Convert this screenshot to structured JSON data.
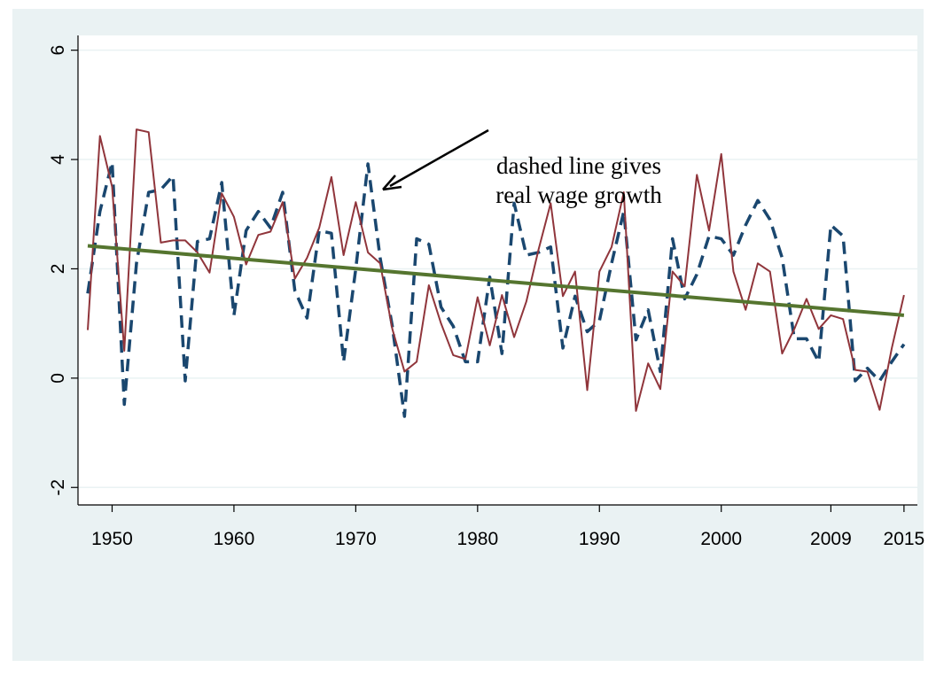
{
  "chart_data": {
    "type": "line",
    "annotation": [
      "dashed line gives",
      "real wage growth"
    ],
    "x": [
      1948,
      1949,
      1950,
      1951,
      1952,
      1953,
      1954,
      1955,
      1956,
      1957,
      1958,
      1959,
      1960,
      1961,
      1962,
      1963,
      1964,
      1965,
      1966,
      1967,
      1968,
      1969,
      1970,
      1971,
      1972,
      1973,
      1974,
      1975,
      1976,
      1977,
      1978,
      1979,
      1980,
      1981,
      1982,
      1983,
      1984,
      1985,
      1986,
      1987,
      1988,
      1989,
      1990,
      1991,
      1992,
      1993,
      1994,
      1995,
      1996,
      1997,
      1998,
      1999,
      2000,
      2001,
      2002,
      2003,
      2004,
      2005,
      2006,
      2007,
      2008,
      2009,
      2010,
      2011,
      2012,
      2013,
      2014,
      2015
    ],
    "series": [
      {
        "color": "#1a476f",
        "dashed": true,
        "values": [
          1.55,
          3.05,
          3.95,
          -0.48,
          2.1,
          3.4,
          3.45,
          3.7,
          -0.05,
          2.5,
          2.55,
          3.58,
          1.15,
          2.7,
          3.05,
          2.75,
          3.4,
          1.6,
          1.1,
          2.7,
          2.65,
          0.3,
          2.0,
          3.92,
          2.2,
          0.95,
          -0.7,
          2.55,
          2.45,
          1.3,
          0.95,
          0.3,
          0.3,
          1.85,
          0.45,
          3.2,
          2.25,
          2.3,
          2.4,
          0.55,
          1.5,
          0.85,
          1.05,
          2.1,
          3.05,
          0.7,
          1.25,
          0.12,
          2.55,
          1.45,
          1.9,
          2.6,
          2.55,
          2.25,
          2.8,
          3.25,
          2.9,
          2.2,
          0.72,
          0.72,
          0.3,
          2.8,
          2.6,
          -0.05,
          0.18,
          -0.05,
          0.3,
          0.62
        ]
      },
      {
        "color": "#90353b",
        "dashed": false,
        "values": [
          0.88,
          4.43,
          3.5,
          0.5,
          4.55,
          4.5,
          2.48,
          2.52,
          2.52,
          2.3,
          1.93,
          3.38,
          2.95,
          2.08,
          2.62,
          2.68,
          3.22,
          1.82,
          2.2,
          2.75,
          3.68,
          2.25,
          3.22,
          2.3,
          2.1,
          0.9,
          0.12,
          0.3,
          1.7,
          1.0,
          0.42,
          0.35,
          1.48,
          0.6,
          1.52,
          0.75,
          1.4,
          2.35,
          3.2,
          1.5,
          1.95,
          -0.22,
          1.95,
          2.4,
          3.4,
          -0.6,
          0.27,
          -0.2,
          1.95,
          1.68,
          3.72,
          2.7,
          4.1,
          1.95,
          1.25,
          2.1,
          1.95,
          0.45,
          0.9,
          1.45,
          0.9,
          1.15,
          1.08,
          0.15,
          0.12,
          -0.58,
          0.55,
          1.52
        ]
      },
      {
        "color": "#55752f",
        "dashed": false,
        "x": [
          1948,
          2015
        ],
        "values": [
          2.42,
          1.15
        ]
      }
    ],
    "xlim": [
      1947.2,
      2016.1
    ],
    "xticks": [
      1950,
      1960,
      1970,
      1980,
      1990,
      2000,
      2009,
      2015
    ],
    "ylim": [
      -2.32,
      6.27
    ],
    "yticks": [
      -2,
      0,
      2,
      4,
      6
    ],
    "grid": true
  }
}
